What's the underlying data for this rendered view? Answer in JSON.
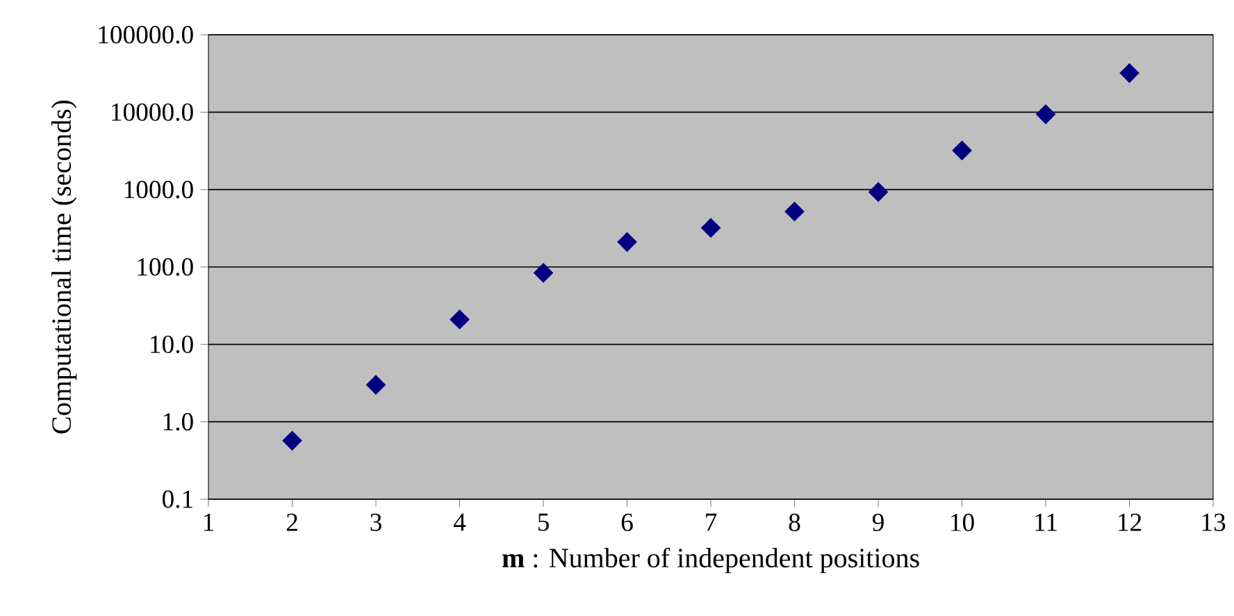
{
  "chart_data": {
    "type": "scatter",
    "xlabel": "**m** : Number of independent positions",
    "ylabel": "Computational time (seconds)",
    "x": [
      2,
      3,
      4,
      5,
      6,
      7,
      8,
      9,
      10,
      11,
      12
    ],
    "values": [
      0.57,
      3.0,
      21,
      84,
      210,
      320,
      520,
      930,
      3200,
      9400,
      32000
    ],
    "color": "#000080",
    "marker": "diamond",
    "log": "y",
    "grid": "y",
    "xlim": [
      1,
      13
    ],
    "xticks": [
      1,
      2,
      3,
      4,
      5,
      6,
      7,
      8,
      9,
      10,
      11,
      12,
      13
    ],
    "ylim": [
      0.1,
      100000
    ],
    "yticks": [
      {
        "value": 0.1,
        "label": "0.1"
      },
      {
        "value": 1,
        "label": "1.0"
      },
      {
        "value": 10,
        "label": "10.0"
      },
      {
        "value": 100,
        "label": "100.0"
      },
      {
        "value": 1000,
        "label": "1000.0"
      },
      {
        "value": 10000,
        "label": "10000.0"
      },
      {
        "value": 100000,
        "label": "100000.0"
      }
    ]
  }
}
